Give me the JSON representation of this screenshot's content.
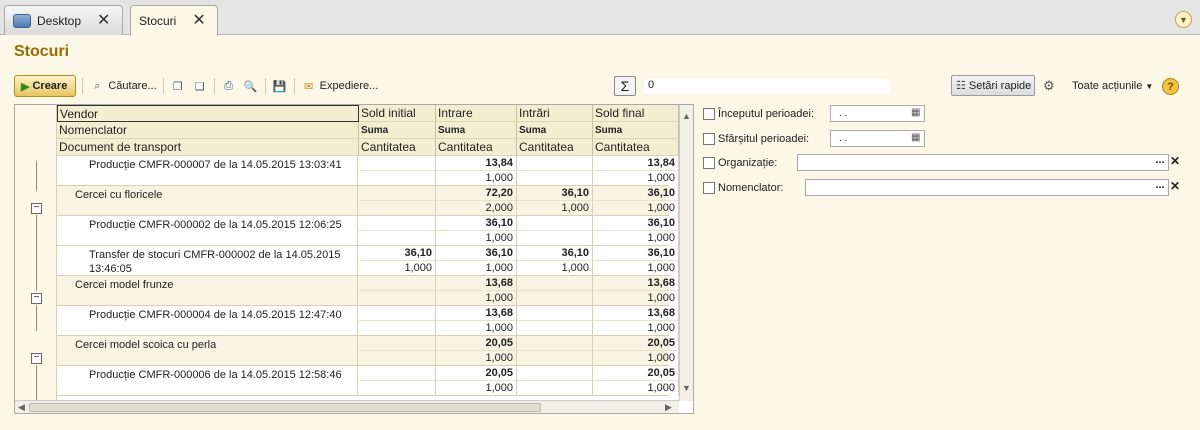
{
  "tabs": [
    {
      "label": "Desktop",
      "icon": "desktop-icon",
      "active": false
    },
    {
      "label": "Stocuri",
      "icon": "",
      "active": true
    }
  ],
  "page_title": "Stocuri",
  "toolbar": {
    "create_label": "Creare",
    "search_label": "Căutare...",
    "send_label": "Expediere...",
    "sum_value": "0",
    "quick_settings_label": "Setări rapide",
    "all_actions_label": "Toate acțiunile"
  },
  "grid": {
    "headers": {
      "level1": "Vendor",
      "level2": "Nomenclator",
      "level3": "Document de transport",
      "cols": [
        {
          "title": "Sold initial",
          "sub1": "Suma",
          "sub2": "Cantitatea"
        },
        {
          "title": "Intrare",
          "sub1": "Suma",
          "sub2": "Cantitatea"
        },
        {
          "title": "Intrări",
          "sub1": "Suma",
          "sub2": "Cantitatea"
        },
        {
          "title": "Sold final",
          "sub1": "Suma",
          "sub2": "Cantitatea"
        }
      ]
    },
    "rows": [
      {
        "text": "Producție CMFR-000007 de la 14.05.2015 13:03:41",
        "group": false,
        "sum": [
          "",
          "13,84",
          "",
          "13,84"
        ],
        "qty": [
          "",
          "1,000",
          "",
          "1,000"
        ]
      },
      {
        "text": "Cercei cu floricele",
        "group": true,
        "sum": [
          "",
          "72,20",
          "36,10",
          "36,10"
        ],
        "qty": [
          "",
          "2,000",
          "1,000",
          "1,000"
        ]
      },
      {
        "text": "Producție CMFR-000002 de la 14.05.2015 12:06:25",
        "group": false,
        "sum": [
          "",
          "36,10",
          "",
          "36,10"
        ],
        "qty": [
          "",
          "1,000",
          "",
          "1,000"
        ]
      },
      {
        "text": "Transfer de stocuri CMFR-000002 de la 14.05.2015 13:46:05",
        "group": false,
        "sum": [
          "36,10",
          "36,10",
          "36,10",
          "36,10"
        ],
        "qty": [
          "1,000",
          "1,000",
          "1,000",
          "1,000"
        ]
      },
      {
        "text": "Cercei model frunze",
        "group": true,
        "sum": [
          "",
          "13,68",
          "",
          "13,68"
        ],
        "qty": [
          "",
          "1,000",
          "",
          "1,000"
        ]
      },
      {
        "text": "Producție CMFR-000004 de la 14.05.2015 12:47:40",
        "group": false,
        "sum": [
          "",
          "13,68",
          "",
          "13,68"
        ],
        "qty": [
          "",
          "1,000",
          "",
          "1,000"
        ]
      },
      {
        "text": "Cercei model scoica cu perla",
        "group": true,
        "sum": [
          "",
          "20,05",
          "",
          "20,05"
        ],
        "qty": [
          "",
          "1,000",
          "",
          "1,000"
        ]
      },
      {
        "text": "Producție CMFR-000006 de la 14.05.2015 12:58:46",
        "group": false,
        "sum": [
          "",
          "20,05",
          "",
          "20,05"
        ],
        "qty": [
          "",
          "1,000",
          "",
          "1,000"
        ]
      }
    ]
  },
  "filters": {
    "period_start_label": "Începutul perioadei:",
    "period_start_value": ". .",
    "period_end_label": "Sfârșitul perioadei:",
    "period_end_value": ". .",
    "organization_label": "Organizație:",
    "nomenclator_label": "Nomenclator:",
    "dots": "..."
  }
}
